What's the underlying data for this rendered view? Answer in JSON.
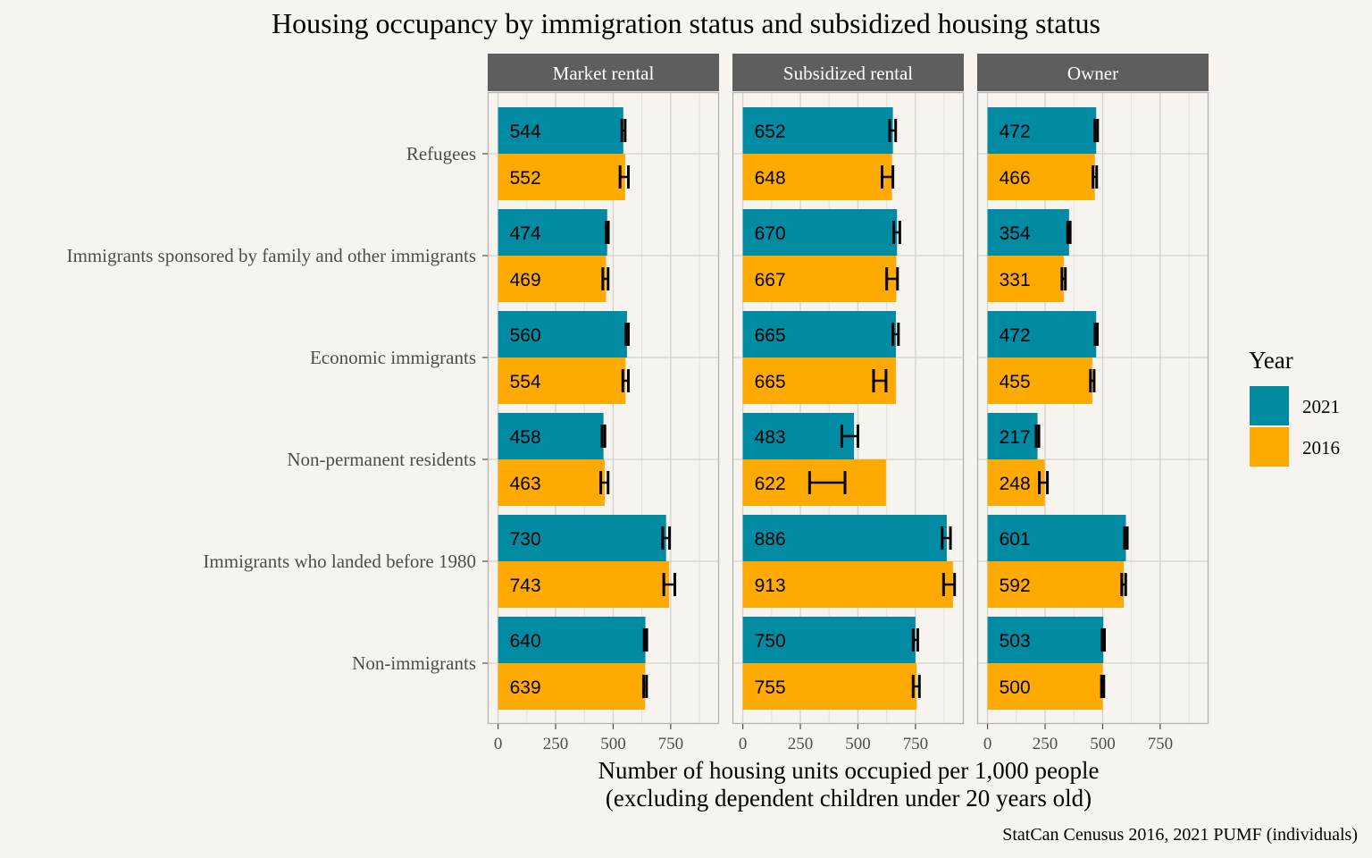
{
  "chart_data": {
    "type": "bar",
    "orientation": "horizontal",
    "title": "Housing occupancy by immigration status and subsidized housing status",
    "xlabel_line1": "Number of housing units occupied per 1,000 people",
    "xlabel_line2": "(excluding dependent children under 20 years old)",
    "caption": "StatCan Cenusus 2016, 2021 PUMF (individuals)",
    "xlim": [
      -45,
      960
    ],
    "x_ticks": [
      0,
      250,
      500,
      750
    ],
    "x_tick_labels": [
      "0",
      "250",
      "500",
      "750"
    ],
    "categories": [
      "Refugees",
      "Immigrants sponsored by family and other immigrants",
      "Economic immigrants",
      "Non-permanent residents",
      "Immigrants who landed before 1980",
      "Non-immigrants"
    ],
    "legend": {
      "title": "Year",
      "placement": "right",
      "entries": [
        {
          "label": "2021",
          "color": "#008ba3"
        },
        {
          "label": "2016",
          "color": "#ffaa00"
        }
      ]
    },
    "panels": [
      {
        "name": "Market rental",
        "series": [
          {
            "name": "2021",
            "color": "#008ba3",
            "values": [
              544,
              474,
              560,
              458,
              730,
              640
            ],
            "error_low": [
              538,
              469,
              555,
              452,
              715,
              635
            ],
            "error_high": [
              552,
              479,
              566,
              464,
              745,
              646
            ]
          },
          {
            "name": "2016",
            "color": "#ffaa00",
            "values": [
              552,
              469,
              554,
              463,
              743,
              639
            ],
            "error_low": [
              530,
              455,
              542,
              446,
              720,
              632
            ],
            "error_high": [
              566,
              478,
              566,
              478,
              768,
              645
            ]
          }
        ]
      },
      {
        "name": "Subsidized rental",
        "series": [
          {
            "name": "2021",
            "color": "#008ba3",
            "values": [
              652,
              670,
              665,
              483,
              886,
              750
            ],
            "error_low": [
              638,
              656,
              652,
              430,
              866,
              740
            ],
            "error_high": [
              664,
              682,
              676,
              500,
              902,
              760
            ]
          },
          {
            "name": "2016",
            "color": "#ffaa00",
            "values": [
              648,
              667,
              665,
              622,
              913,
              755
            ],
            "error_low": [
              605,
              625,
              568,
              290,
              872,
              740
            ],
            "error_high": [
              652,
              672,
              622,
              444,
              920,
              767
            ]
          }
        ]
      },
      {
        "name": "Owner",
        "series": [
          {
            "name": "2021",
            "color": "#008ba3",
            "values": [
              472,
              354,
              472,
              217,
              601,
              503
            ],
            "error_low": [
              466,
              348,
              467,
              211,
              595,
              498
            ],
            "error_high": [
              478,
              359,
              477,
              223,
              607,
              508
            ]
          },
          {
            "name": "2016",
            "color": "#ffaa00",
            "values": [
              466,
              331,
              455,
              248,
              592,
              500
            ],
            "error_low": [
              458,
              323,
              447,
              225,
              583,
              495
            ],
            "error_high": [
              474,
              338,
              463,
              260,
              600,
              505
            ]
          }
        ]
      }
    ]
  }
}
